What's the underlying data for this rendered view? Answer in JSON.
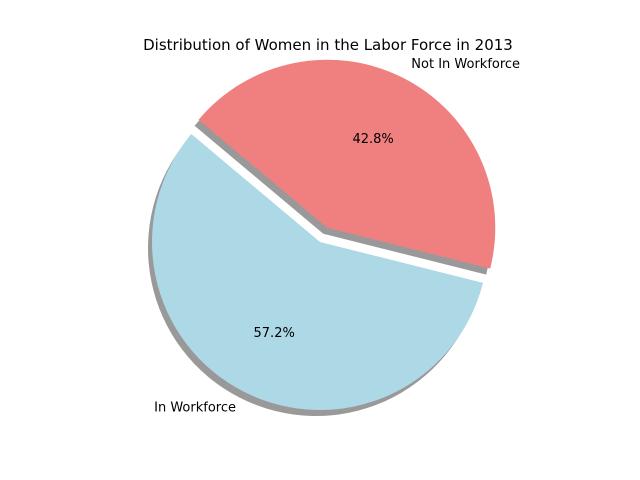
{
  "chart_data": {
    "type": "pie",
    "title": "Distribution of Women in the Labor Force in 2013",
    "slices": [
      {
        "label": "In Workforce",
        "value": 57.2,
        "pct_label": "57.2%",
        "color": "#add8e6",
        "explode": false
      },
      {
        "label": "Not In Workforce",
        "value": 42.8,
        "pct_label": "42.8%",
        "color": "#f08080",
        "explode": true
      }
    ],
    "start_angle_deg": 140,
    "shadow": true,
    "legend": "none"
  }
}
